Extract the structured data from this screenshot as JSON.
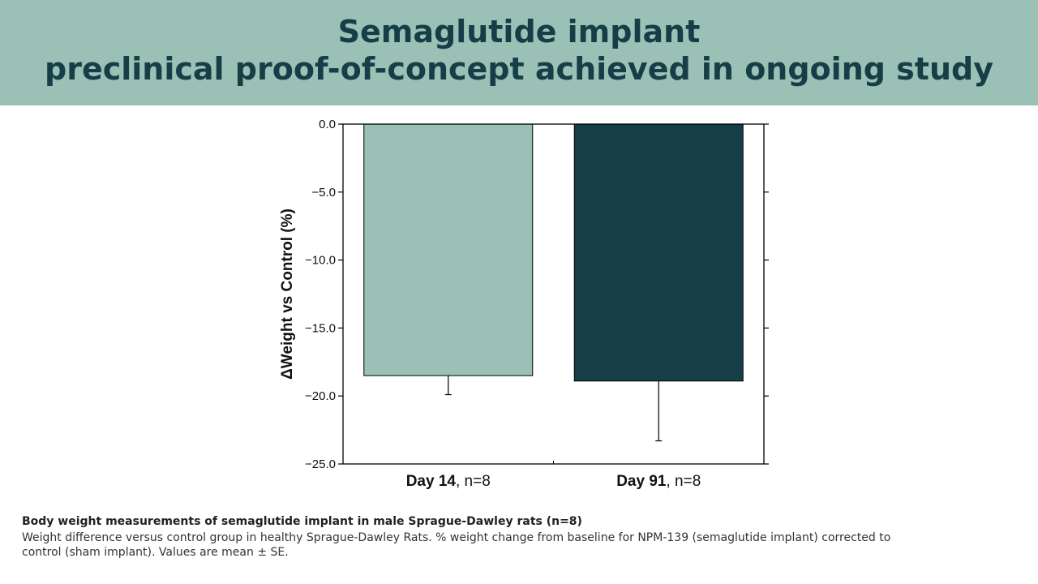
{
  "header": {
    "title_line1": "Semaglutide implant",
    "title_line2": "preclinical proof-of-concept achieved in ongoing study",
    "background": "#9bc1b6",
    "text_color": "#163e47"
  },
  "caption": {
    "title": "Body weight measurements of semaglutide implant in male Sprague-Dawley rats (n=8)",
    "body_line1": "Weight difference versus control group in healthy Sprague-Dawley Rats. % weight change from baseline for NPM-139 (semaglutide implant) corrected to",
    "body_line2": "control (sham implant). Values are mean ± SE."
  },
  "chart_data": {
    "type": "bar",
    "categories": [
      {
        "bold": "Day 14",
        "rest": ", n=8"
      },
      {
        "bold": "Day 91",
        "rest": ", n=8"
      }
    ],
    "values": [
      -18.5,
      -18.9
    ],
    "errors": [
      1.4,
      4.4
    ],
    "bar_colors": [
      "#9bc1b6",
      "#163e47"
    ],
    "ylabel": "ΔWeight vs Control (%)",
    "ylim": [
      -25.0,
      0.0
    ],
    "yticks": [
      "0.0",
      "−5.0",
      "−10.0",
      "−15.0",
      "−20.0",
      "−25.0"
    ],
    "ytick_values": [
      0,
      -5,
      -10,
      -15,
      -20,
      -25
    ],
    "error_direction": "down",
    "grid": false
  }
}
